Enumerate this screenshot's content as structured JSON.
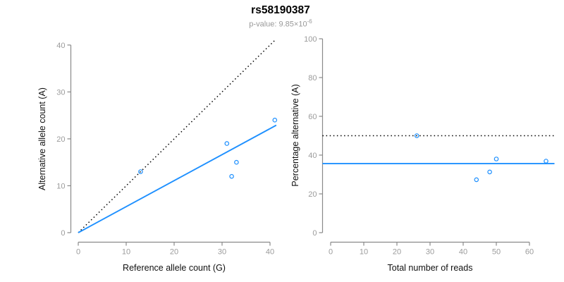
{
  "header": {
    "title": "rs58190387",
    "subtitle_prefix": "p-value: 9.85×10",
    "subtitle_exponent": "-6"
  },
  "colors": {
    "accent_blue": "#1E90FF",
    "line_black": "#000000",
    "axis_gray": "#8A8A8A",
    "tick_label_gray": "#9B9B9B",
    "axis_title_color": "#111111",
    "subtitle_gray": "#999999",
    "background": "#FFFFFF"
  },
  "chart_data": [
    {
      "type": "scatter",
      "name": "allele-counts-panel",
      "title": "",
      "xlabel": "Reference allele count (G)",
      "ylabel": "Alternative allele count (A)",
      "xlim": [
        0,
        41
      ],
      "ylim": [
        0,
        41
      ],
      "xticks": [
        0,
        10,
        20,
        30,
        40
      ],
      "yticks": [
        0,
        10,
        20,
        30,
        40
      ],
      "grid": false,
      "legend": null,
      "points": [
        {
          "x": 13,
          "y": 13
        },
        {
          "x": 31,
          "y": 19
        },
        {
          "x": 32,
          "y": 12
        },
        {
          "x": 33,
          "y": 15
        },
        {
          "x": 41,
          "y": 24
        }
      ],
      "lines": [
        {
          "name": "identity-line",
          "dash": "dotted",
          "color": "black",
          "x1": 0,
          "y1": 0,
          "x2": 41,
          "y2": 41
        },
        {
          "name": "fit-line",
          "dash": "solid",
          "color": "blue",
          "x1": 0,
          "y1": 0,
          "x2": 41.3,
          "y2": 22.9
        }
      ]
    },
    {
      "type": "scatter",
      "name": "percentage-by-depth-panel",
      "title": "",
      "xlabel": "Total number of reads",
      "ylabel": "Percentage alternative (A)",
      "xlim": [
        0,
        65
      ],
      "ylim": [
        0,
        100
      ],
      "xticks": [
        0,
        10,
        20,
        30,
        40,
        50,
        60
      ],
      "yticks": [
        0,
        20,
        40,
        60,
        80,
        100
      ],
      "grid": false,
      "legend": null,
      "points": [
        {
          "x": 26,
          "y": 50
        },
        {
          "x": 44,
          "y": 27.3
        },
        {
          "x": 48,
          "y": 31.3
        },
        {
          "x": 50,
          "y": 38
        },
        {
          "x": 65,
          "y": 36.9
        }
      ],
      "lines": [
        {
          "name": "expected-50pct-line",
          "dash": "dotted",
          "color": "black",
          "hline": 50
        },
        {
          "name": "fit-line",
          "dash": "solid",
          "color": "blue",
          "hline": 35.6
        }
      ]
    }
  ]
}
